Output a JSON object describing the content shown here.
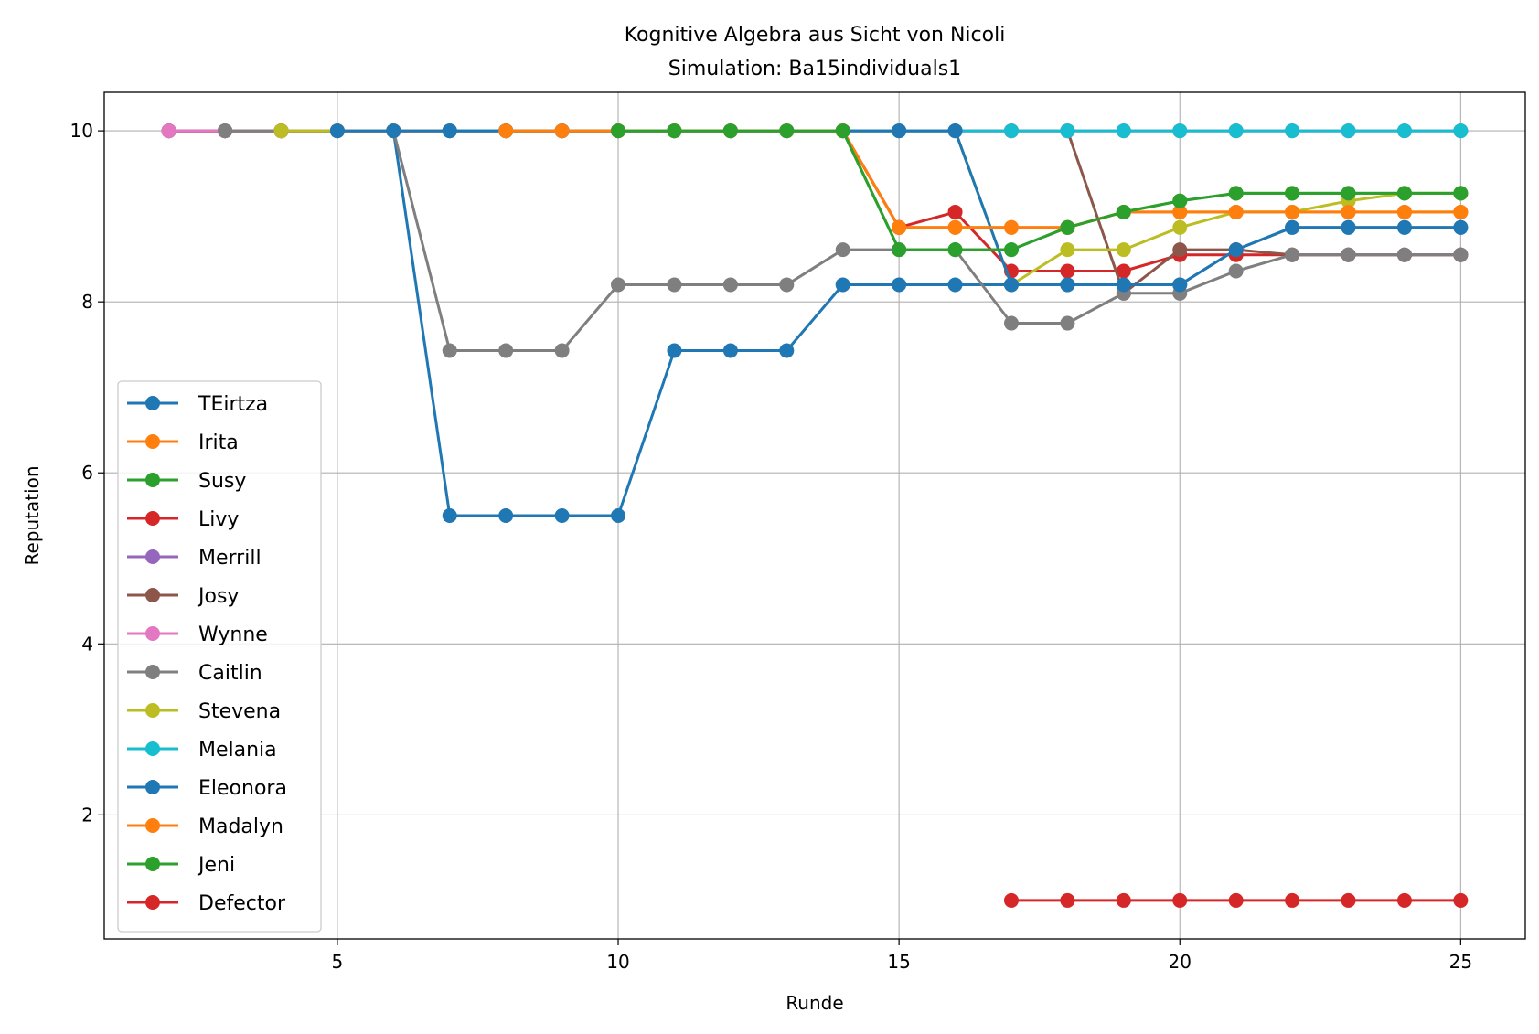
{
  "chart_data": {
    "type": "line",
    "title": "Kognitive Algebra aus Sicht von Nicoli",
    "subtitle": "Simulation: Ba15individuals1",
    "xlabel": "Runde",
    "ylabel": "Reputation",
    "xlim": [
      0.85,
      26.15
    ],
    "ylim": [
      0.55,
      10.45
    ],
    "xticks": [
      5,
      10,
      15,
      20,
      25
    ],
    "yticks": [
      2,
      4,
      6,
      8,
      10
    ],
    "grid": true,
    "legend_position": "center-left",
    "series": [
      {
        "name": "TEirtza",
        "color": "#1f77b4",
        "x": [
          2,
          3,
          4,
          5,
          6,
          7,
          8,
          9,
          10,
          11,
          12,
          13,
          14,
          15,
          16,
          17,
          18,
          19,
          20,
          21,
          22,
          23,
          24,
          25
        ],
        "y": [
          10,
          10,
          10,
          10,
          10,
          5.5,
          5.5,
          5.5,
          5.5,
          7.43,
          7.43,
          7.43,
          8.2,
          8.2,
          8.2,
          8.2,
          8.2,
          8.2,
          8.2,
          8.61,
          8.87,
          8.87,
          8.87,
          8.87
        ]
      },
      {
        "name": "Irita",
        "color": "#ff7f0e",
        "x": [
          2,
          3,
          4,
          5,
          6,
          7,
          8,
          9,
          10,
          11,
          12,
          13,
          14,
          15,
          16,
          17,
          18,
          19,
          20,
          21,
          22,
          23,
          24,
          25
        ],
        "y": [
          10,
          10,
          10,
          10,
          10,
          10,
          10,
          10,
          10,
          10,
          10,
          10,
          10,
          8.87,
          8.87,
          8.87,
          8.87,
          9.05,
          9.05,
          9.05,
          9.05,
          9.05,
          9.05,
          9.05
        ]
      },
      {
        "name": "Susy",
        "color": "#2ca02c",
        "x": [
          2,
          3,
          4,
          5,
          6,
          7,
          8,
          9,
          10,
          11,
          12,
          13,
          14,
          15,
          16,
          17,
          18,
          19,
          20,
          21,
          22,
          23,
          24,
          25
        ],
        "y": [
          10,
          10,
          10,
          10,
          10,
          10,
          10,
          10,
          10,
          10,
          10,
          10,
          10,
          8.61,
          8.61,
          8.61,
          8.87,
          9.05,
          9.18,
          9.27,
          9.27,
          9.27,
          9.27,
          9.27
        ]
      },
      {
        "name": "Livy",
        "color": "#d62728",
        "x": [
          2,
          3,
          4,
          5,
          6,
          7,
          8,
          9,
          10,
          11,
          12,
          13,
          14,
          15,
          16,
          17,
          18,
          19,
          20,
          21,
          22,
          23,
          24,
          25
        ],
        "y": [
          10,
          10,
          10,
          10,
          10,
          10,
          10,
          10,
          10,
          10,
          10,
          10,
          10,
          8.87,
          9.05,
          8.36,
          8.36,
          8.36,
          8.55,
          8.55,
          8.55,
          8.55,
          8.55,
          8.55
        ]
      },
      {
        "name": "Merrill",
        "color": "#9467bd",
        "x": [
          2,
          3,
          4,
          5,
          6,
          7,
          8,
          9,
          10,
          11,
          12,
          13,
          14,
          15,
          16,
          17,
          18,
          19,
          20,
          21,
          22,
          23,
          24,
          25
        ],
        "y": [
          10,
          10,
          10,
          10,
          10,
          10,
          10,
          10,
          10,
          10,
          10,
          10,
          10,
          10,
          10,
          10,
          10,
          10,
          10,
          10,
          10,
          10,
          10,
          10
        ]
      },
      {
        "name": "Josy",
        "color": "#8c564b",
        "x": [
          2,
          3,
          4,
          5,
          6,
          7,
          8,
          9,
          10,
          11,
          12,
          13,
          14,
          15,
          16,
          17,
          18,
          19,
          20,
          21,
          22,
          23,
          24,
          25
        ],
        "y": [
          10,
          10,
          10,
          10,
          10,
          10,
          10,
          10,
          10,
          10,
          10,
          10,
          10,
          10,
          10,
          10,
          10,
          8.1,
          8.61,
          8.61,
          8.55,
          8.55,
          8.55,
          8.55
        ]
      },
      {
        "name": "Wynne",
        "color": "#e377c2",
        "x": [
          2,
          3,
          4,
          5,
          6,
          7,
          8,
          9,
          10,
          11,
          12,
          13,
          14,
          15,
          16,
          17,
          18,
          19,
          20,
          21,
          22,
          23,
          24,
          25
        ],
        "y": [
          10,
          10,
          10,
          10,
          10,
          10,
          10,
          10,
          10,
          10,
          10,
          10,
          10,
          10,
          10,
          10,
          10,
          10,
          10,
          10,
          10,
          10,
          10,
          10
        ]
      },
      {
        "name": "Caitlin",
        "color": "#7f7f7f",
        "x": [
          3,
          4,
          5,
          6,
          7,
          8,
          9,
          10,
          11,
          12,
          13,
          14,
          15,
          16,
          17,
          18,
          19,
          20,
          21,
          22,
          23,
          24,
          25
        ],
        "y": [
          10,
          10,
          10,
          10,
          7.43,
          7.43,
          7.43,
          8.2,
          8.2,
          8.2,
          8.2,
          8.61,
          8.61,
          8.61,
          7.75,
          7.75,
          8.1,
          8.1,
          8.36,
          8.55,
          8.55,
          8.55,
          8.55
        ]
      },
      {
        "name": "Stevena",
        "color": "#bcbd22",
        "x": [
          4,
          5,
          6,
          7,
          8,
          9,
          10,
          11,
          12,
          13,
          14,
          15,
          16,
          17,
          18,
          19,
          20,
          21,
          22,
          23,
          24,
          25
        ],
        "y": [
          10,
          10,
          10,
          10,
          10,
          10,
          10,
          10,
          10,
          10,
          10,
          10,
          10,
          8.2,
          8.61,
          8.61,
          8.87,
          9.05,
          9.05,
          9.18,
          9.27,
          9.27
        ]
      },
      {
        "name": "Melania",
        "color": "#17becf",
        "x": [
          7,
          8,
          9,
          10,
          11,
          12,
          13,
          14,
          15,
          16,
          17,
          18,
          19,
          20,
          21,
          22,
          23,
          24,
          25
        ],
        "y": [
          10,
          10,
          10,
          10,
          10,
          10,
          10,
          10,
          10,
          10,
          10,
          10,
          10,
          10,
          10,
          10,
          10,
          10,
          10
        ]
      },
      {
        "name": "Eleonora",
        "color": "#1f77b4",
        "x": [
          5,
          6,
          7,
          8,
          9,
          10,
          11,
          12,
          13,
          14,
          15,
          16,
          17,
          18,
          19,
          20,
          21,
          22,
          23,
          24,
          25
        ],
        "y": [
          10,
          10,
          10,
          10,
          10,
          10,
          10,
          10,
          10,
          10,
          10,
          10,
          8.2,
          8.2,
          8.2,
          8.2,
          8.61,
          8.87,
          8.87,
          8.87,
          8.87
        ]
      },
      {
        "name": "Madalyn",
        "color": "#ff7f0e",
        "x": [
          8,
          9,
          10,
          11,
          12,
          13,
          14,
          15,
          16,
          17,
          18,
          19,
          20,
          21,
          22,
          23,
          24,
          25
        ],
        "y": [
          10,
          10,
          10,
          10,
          10,
          10,
          10,
          8.87,
          8.87,
          8.87,
          8.87,
          9.05,
          9.05,
          9.05,
          9.05,
          9.05,
          9.05,
          9.05
        ]
      },
      {
        "name": "Jeni",
        "color": "#2ca02c",
        "x": [
          10,
          11,
          12,
          13,
          14,
          15,
          16,
          17,
          18,
          19,
          20,
          21,
          22,
          23,
          24,
          25
        ],
        "y": [
          10,
          10,
          10,
          10,
          10,
          8.61,
          8.61,
          8.61,
          8.87,
          9.05,
          9.18,
          9.27,
          9.27,
          9.27,
          9.27,
          9.27
        ]
      },
      {
        "name": "Defector",
        "color": "#d62728",
        "x": [
          17,
          18,
          19,
          20,
          21,
          22,
          23,
          24,
          25
        ],
        "y": [
          1,
          1,
          1,
          1,
          1,
          1,
          1,
          1,
          1
        ]
      }
    ]
  }
}
